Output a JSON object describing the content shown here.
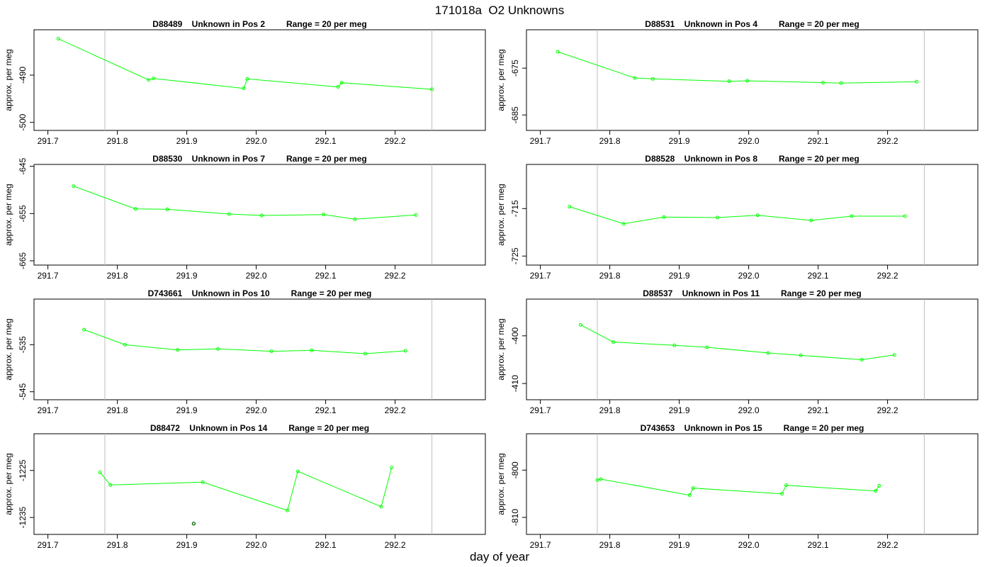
{
  "figure": {
    "title": "171018a  O2 Unknowns",
    "xlabel": "day of year"
  },
  "chart_data": [
    {
      "type": "line",
      "title": "D88489    Unknown in Pos 2         Range = 20 per meg",
      "ylabel": "approx. per meg",
      "xlim": [
        291.68,
        292.33
      ],
      "ylim": [
        -501.7,
        -480.4
      ],
      "x_ticks": [
        "291.7",
        "291.8",
        "291.9",
        "292.0",
        "292.1",
        "292.2"
      ],
      "y_ticks": [
        "-490",
        "-500"
      ],
      "vertical_lines": [
        291.782,
        292.253
      ],
      "series": [
        {
          "x": [
            291.715,
            291.845,
            291.852,
            291.982,
            291.987,
            292.118,
            292.123,
            292.253
          ],
          "y": [
            -482.3,
            -491.0,
            -490.7,
            -492.8,
            -490.8,
            -492.5,
            -491.6,
            -493.0
          ]
        }
      ]
    },
    {
      "type": "line",
      "title": "D88531    Unknown in Pos 4         Range = 20 per meg",
      "ylabel": "approx. per meg",
      "xlim": [
        291.68,
        292.33
      ],
      "ylim": [
        -688.3,
        -666.8
      ],
      "x_ticks": [
        "291.7",
        "291.8",
        "291.9",
        "292.0",
        "292.1",
        "292.2"
      ],
      "y_ticks": [
        "-675",
        "-685"
      ],
      "vertical_lines": [
        291.782,
        292.253
      ],
      "series": [
        {
          "x": [
            291.725,
            291.836,
            291.862,
            291.972,
            291.998,
            292.107,
            292.133,
            292.242
          ],
          "y": [
            -671.5,
            -677.1,
            -677.3,
            -677.8,
            -677.7,
            -678.1,
            -678.2,
            -677.9
          ]
        }
      ]
    },
    {
      "type": "line",
      "title": "D88530    Unknown in Pos 7         Range = 20 per meg",
      "ylabel": "approx. per meg",
      "xlim": [
        291.68,
        292.33
      ],
      "ylim": [
        -665.9,
        -644.6
      ],
      "x_ticks": [
        "291.7",
        "291.8",
        "291.9",
        "292.0",
        "292.1",
        "292.2"
      ],
      "y_ticks": [
        "-645",
        "-655",
        "-665"
      ],
      "vertical_lines": [
        291.782,
        292.253
      ],
      "series": [
        {
          "x": [
            291.737,
            291.826,
            291.872,
            291.961,
            292.008,
            292.097,
            292.142,
            292.23
          ],
          "y": [
            -649.2,
            -654.0,
            -654.1,
            -655.1,
            -655.4,
            -655.2,
            -656.2,
            -655.3
          ]
        }
      ]
    },
    {
      "type": "line",
      "title": "D88528    Unknown in Pos 8         Range = 20 per meg",
      "ylabel": "approx. per meg",
      "xlim": [
        291.68,
        292.33
      ],
      "ylim": [
        -726.9,
        -705.7
      ],
      "x_ticks": [
        "291.7",
        "291.8",
        "291.9",
        "292.0",
        "292.1",
        "292.2"
      ],
      "y_ticks": [
        "-715",
        "-725"
      ],
      "vertical_lines": [
        291.782,
        292.253
      ],
      "series": [
        {
          "x": [
            291.742,
            291.82,
            291.878,
            291.955,
            292.013,
            292.09,
            292.148,
            292.225
          ],
          "y": [
            -714.6,
            -718.2,
            -716.8,
            -716.9,
            -716.4,
            -717.5,
            -716.6,
            -716.6
          ]
        }
      ]
    },
    {
      "type": "line",
      "title": "D743661    Unknown in Pos 10         Range = 20 per meg",
      "ylabel": "approx. per meg",
      "xlim": [
        291.68,
        292.33
      ],
      "ylim": [
        -546.7,
        -525.3
      ],
      "x_ticks": [
        "291.7",
        "291.8",
        "291.9",
        "292.0",
        "292.1",
        "292.2"
      ],
      "y_ticks": [
        "-535",
        "-545"
      ],
      "vertical_lines": [
        291.782,
        292.253
      ],
      "series": [
        {
          "x": [
            291.752,
            291.811,
            291.887,
            291.945,
            292.022,
            292.08,
            292.157,
            292.215
          ],
          "y": [
            -531.8,
            -535.0,
            -536.1,
            -535.9,
            -536.4,
            -536.2,
            -536.9,
            -536.3
          ]
        }
      ]
    },
    {
      "type": "line",
      "title": "D88537    Unknown in Pos 11         Range = 20 per meg",
      "ylabel": "approx. per meg",
      "xlim": [
        291.68,
        292.33
      ],
      "ylim": [
        -413.4,
        -392.3
      ],
      "x_ticks": [
        "291.7",
        "291.8",
        "291.9",
        "292.0",
        "292.1",
        "292.2"
      ],
      "y_ticks": [
        "-400",
        "-410"
      ],
      "vertical_lines": [
        291.782,
        292.253
      ],
      "series": [
        {
          "x": [
            291.758,
            291.805,
            291.893,
            291.94,
            292.028,
            292.075,
            292.163,
            292.21
          ],
          "y": [
            -397.7,
            -401.3,
            -402.0,
            -402.4,
            -403.6,
            -404.1,
            -405.0,
            -404.0
          ]
        }
      ]
    },
    {
      "type": "line",
      "title": "D88472    Unknown in Pos 14         Range = 20 per meg",
      "ylabel": "approx. per meg",
      "xlim": [
        291.68,
        292.33
      ],
      "ylim": [
        -1238.6,
        -1217.2
      ],
      "x_ticks": [
        "291.7",
        "291.8",
        "291.9",
        "292.0",
        "292.1",
        "292.2"
      ],
      "y_ticks": [
        "-1225",
        "-1235"
      ],
      "vertical_lines": [
        291.782,
        292.253
      ],
      "series": [
        {
          "x": [
            291.775,
            291.79,
            291.923,
            292.045,
            292.06,
            292.18,
            292.195
          ],
          "y": [
            -1225.4,
            -1228.1,
            -1227.5,
            -1233.5,
            -1225.2,
            -1232.7,
            -1224.4
          ]
        }
      ],
      "extra_points": [
        {
          "x": 291.91,
          "y": -1236.3
        }
      ]
    },
    {
      "type": "line",
      "title": "D743653    Unknown in Pos 15         Range = 20 per meg",
      "ylabel": "approx. per meg",
      "xlim": [
        291.68,
        292.33
      ],
      "ylim": [
        -813.6,
        -792.3
      ],
      "x_ticks": [
        "291.7",
        "291.8",
        "291.9",
        "292.0",
        "292.1",
        "292.2"
      ],
      "y_ticks": [
        "-800",
        "-810"
      ],
      "vertical_lines": [
        291.782,
        292.253
      ],
      "series": [
        {
          "x": [
            291.782,
            291.787,
            291.915,
            291.92,
            292.048,
            292.054,
            292.183,
            292.188
          ],
          "y": [
            -802.1,
            -801.9,
            -805.3,
            -803.8,
            -805.0,
            -803.2,
            -804.4,
            -803.3
          ]
        }
      ]
    }
  ]
}
